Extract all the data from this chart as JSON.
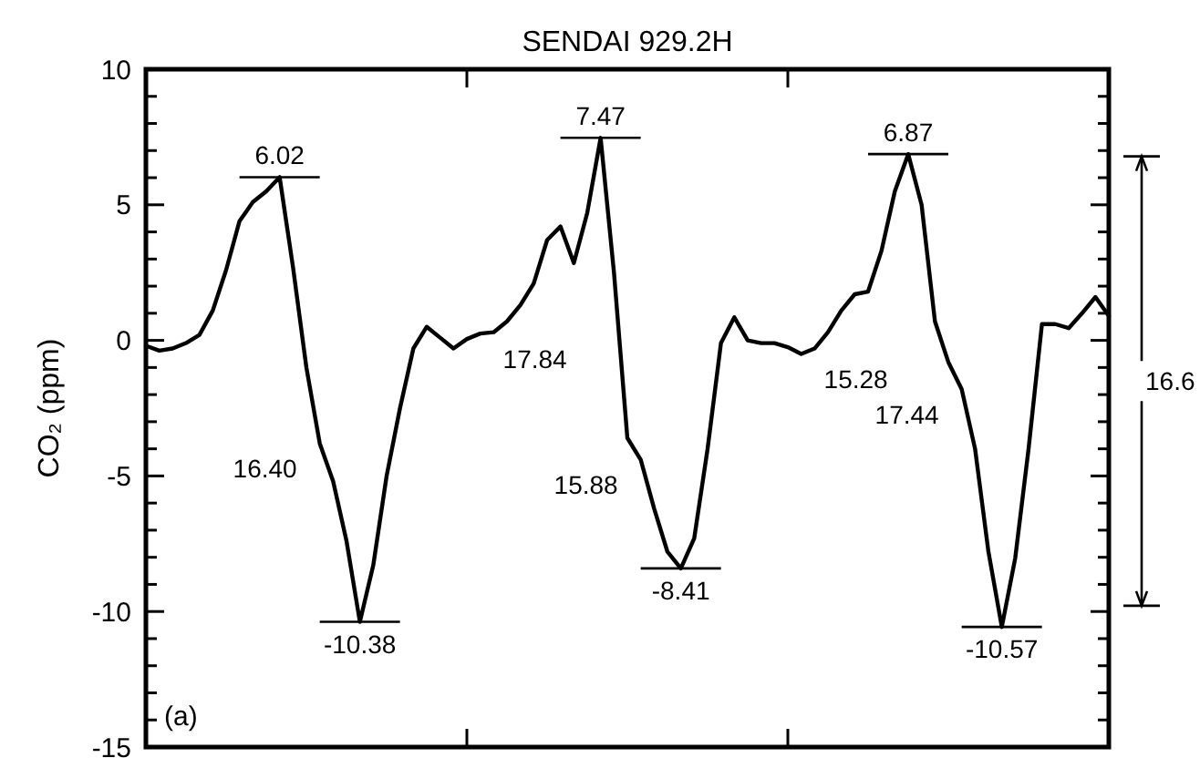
{
  "chart_data": {
    "type": "line",
    "title": "SENDAI   929.2H",
    "ylabel": "CO₂ (ppm)",
    "categories": [
      null,
      null,
      null,
      null,
      null,
      null,
      null,
      null,
      null,
      null,
      null,
      null,
      null,
      null,
      null,
      null,
      null,
      null,
      null,
      null,
      null,
      null,
      null,
      null,
      null,
      null,
      null,
      null,
      null,
      null,
      null,
      null,
      null,
      null,
      null,
      null,
      null,
      null,
      null,
      null,
      null,
      null,
      null,
      null,
      null,
      null,
      null,
      null,
      null,
      null,
      null,
      null,
      null,
      null,
      null,
      null,
      null,
      null,
      null,
      null,
      null,
      null,
      null,
      null,
      null,
      null,
      null,
      null,
      null,
      null,
      null,
      null,
      null
    ],
    "ylim": [
      -15,
      10
    ],
    "yticks": [
      -15,
      {
        "value": -14,
        "label": null
      },
      {
        "value": -13,
        "label": null
      },
      {
        "value": -12,
        "label": null
      },
      {
        "value": -11,
        "label": null
      },
      -10,
      {
        "value": -9,
        "label": null
      },
      {
        "value": -8,
        "label": null
      },
      {
        "value": -7,
        "label": null
      },
      {
        "value": -6,
        "label": null
      },
      -5,
      {
        "value": -4,
        "label": null
      },
      {
        "value": -3,
        "label": null
      },
      {
        "value": -2,
        "label": null
      },
      {
        "value": -1,
        "label": null
      },
      0,
      {
        "value": 1,
        "label": null
      },
      {
        "value": 2,
        "label": null
      },
      {
        "value": 3,
        "label": null
      },
      {
        "value": 4,
        "label": null
      },
      5,
      {
        "value": 6,
        "label": null
      },
      {
        "value": 7,
        "label": null
      },
      {
        "value": 8,
        "label": null
      },
      {
        "value": 9,
        "label": null
      },
      10
    ],
    "tick_labels": "y",
    "grid": false,
    "marker": "none",
    "line_style": "solid",
    "series": [
      {
        "color": "#000000",
        "values": [
          -0.2,
          -0.38,
          -0.3,
          -0.1,
          0.2,
          1.1,
          2.6,
          4.4,
          5.1,
          5.5,
          6.02,
          2.7,
          -1.0,
          -3.8,
          -5.2,
          -7.4,
          -10.38,
          -8.3,
          -5.0,
          -2.5,
          -0.3,
          0.5,
          0.1,
          -0.3,
          0.05,
          0.25,
          0.3,
          0.7,
          1.3,
          2.1,
          3.7,
          4.2,
          2.85,
          4.7,
          7.47,
          2.5,
          -3.6,
          -4.4,
          -6.2,
          -7.8,
          -8.41,
          -7.3,
          -4.0,
          -0.1,
          0.85,
          0.0,
          -0.1,
          -0.1,
          -0.25,
          -0.5,
          -0.3,
          0.3,
          1.1,
          1.7,
          1.8,
          3.3,
          5.5,
          6.87,
          5.0,
          0.7,
          -0.8,
          -1.8,
          -4.0,
          -7.8,
          -10.57,
          -8.04,
          -4.0,
          0.6,
          0.6,
          0.45,
          1.0,
          1.6,
          0.9
        ],
        "value_labels": [
          null,
          null,
          null,
          null,
          null,
          null,
          null,
          null,
          null,
          null,
          "6.02",
          null,
          null,
          null,
          null,
          null,
          "-10.38",
          null,
          null,
          null,
          null,
          null,
          null,
          null,
          null,
          null,
          null,
          null,
          null,
          null,
          null,
          null,
          null,
          null,
          "7.47",
          null,
          null,
          null,
          null,
          null,
          "-8.41",
          null,
          null,
          null,
          null,
          null,
          null,
          null,
          null,
          null,
          null,
          null,
          null,
          null,
          null,
          null,
          null,
          "6.87",
          null,
          null,
          null,
          null,
          null,
          null,
          "-10.57",
          null,
          null,
          null,
          null,
          null,
          null,
          null,
          null
        ]
      }
    ],
    "annotations": [
      "16.40",
      "17.84",
      "15.88",
      "15.28",
      "17.44",
      "16.6",
      "(a)"
    ]
  }
}
